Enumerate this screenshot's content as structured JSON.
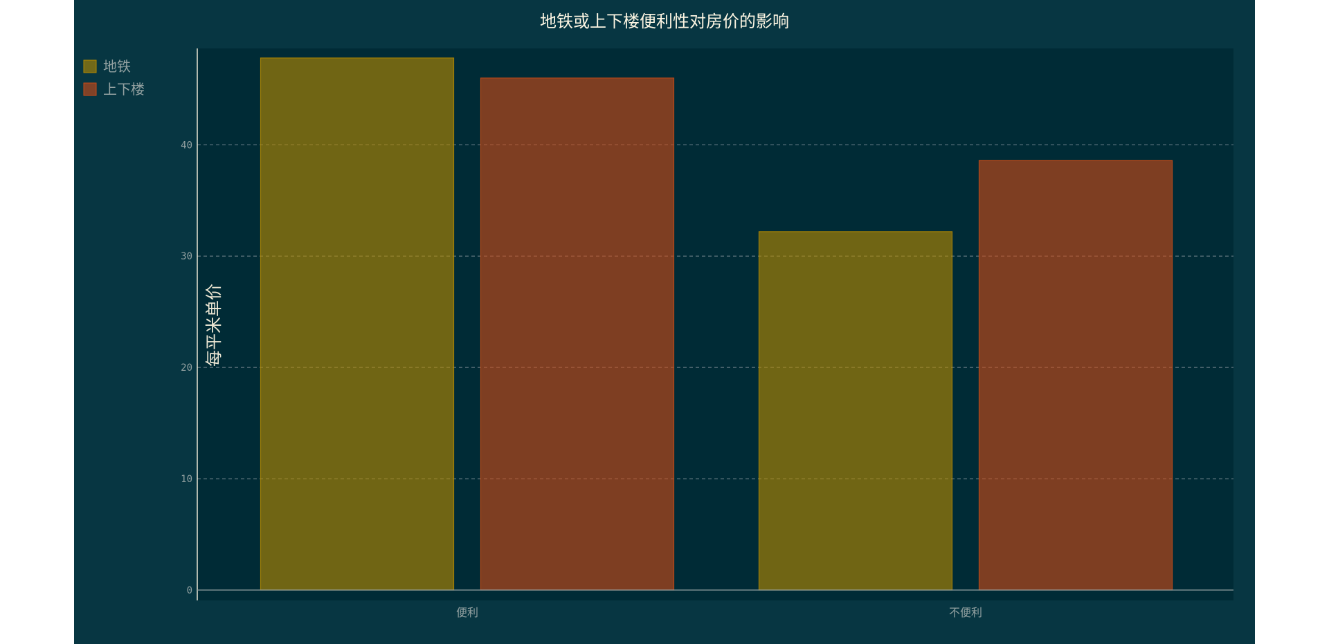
{
  "colors": {
    "page_background": "#ffffff",
    "chart_background": "#073642",
    "plot_background": "#002b36",
    "grid": "#657b83",
    "axis": "#93a1a1",
    "subway": "#b58900",
    "stairs": "#cb4b16"
  },
  "chart_data": {
    "type": "bar",
    "title": "地铁或上下楼便利性对房价的影响",
    "xlabel": "",
    "ylabel": "每平米单价",
    "categories": [
      "便利",
      "不便利"
    ],
    "series": [
      {
        "name": "地铁",
        "values": [
          47.8,
          32.2
        ],
        "color": "#b58900"
      },
      {
        "name": "上下楼",
        "values": [
          46.0,
          38.6
        ],
        "color": "#cb4b16"
      }
    ],
    "ylim": [
      0,
      49
    ],
    "yticks": [
      0,
      10,
      20,
      30,
      40
    ],
    "grid": true,
    "grid_style": "dashed",
    "legend_position": "top-left"
  }
}
